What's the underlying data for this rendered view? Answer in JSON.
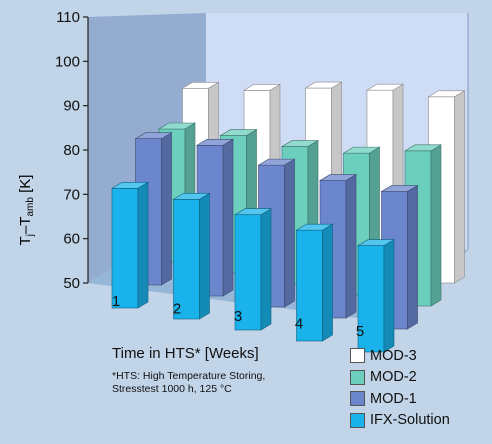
{
  "chart_data": {
    "type": "bar",
    "subtype": "3d-grouped",
    "categories": [
      "1",
      "2",
      "3",
      "4",
      "5"
    ],
    "series": [
      {
        "name": "MOD-3",
        "values": [
          84,
          86,
          89,
          91,
          92
        ],
        "color": "#ffffff"
      },
      {
        "name": "MOD-2",
        "values": [
          80,
          81,
          81,
          82,
          85
        ],
        "color": "#6ccfbd"
      },
      {
        "name": "MOD-1",
        "values": [
          83,
          84,
          82,
          81,
          81
        ],
        "color": "#6b86cc"
      },
      {
        "name": "IFX-Solution",
        "values": [
          77,
          77,
          76,
          75,
          74
        ],
        "color": "#19b2ea"
      }
    ],
    "ylabel": {
      "main": "T",
      "sub1": "j",
      "dash": "–T",
      "sub2": "amb",
      "unit": " [K]"
    },
    "xlabel": "Time in HTS* [Weeks]",
    "yticks": [
      "50",
      "60",
      "70",
      "80",
      "90",
      "100",
      "110"
    ],
    "ylim": [
      50,
      110
    ],
    "legend_position": "bottom-right",
    "grid": false
  },
  "footnote": {
    "line1": "*HTS: High Temperature Storing,",
    "line2": "Stresstest 1000 h, 125 °C"
  }
}
